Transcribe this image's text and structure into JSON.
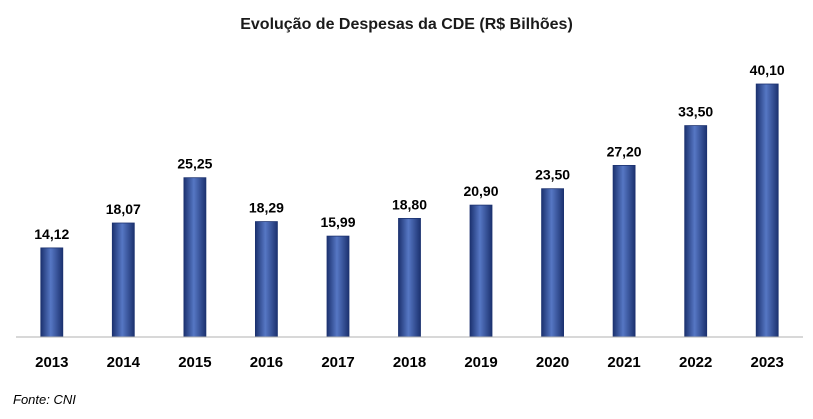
{
  "title": "Evolução de Despesas da CDE (R$ Bilhões)",
  "source_note": "Fonte: CNI",
  "colors": {
    "bar": "#2f4f9a",
    "bar_dark": "#1c3270",
    "bar_light": "#5677c4",
    "axis": "#b0b0b0"
  },
  "chart_data": {
    "type": "bar",
    "title": "Evolução de Despesas da CDE (R$ Bilhões)",
    "xlabel": "",
    "ylabel": "",
    "categories": [
      "2013",
      "2014",
      "2015",
      "2016",
      "2017",
      "2018",
      "2019",
      "2020",
      "2021",
      "2022",
      "2023"
    ],
    "values": [
      14.12,
      18.07,
      25.25,
      18.29,
      15.99,
      18.8,
      20.9,
      23.5,
      27.2,
      33.5,
      40.1
    ],
    "value_labels": [
      "14,12",
      "18,07",
      "25,25",
      "18,29",
      "15,99",
      "18,80",
      "20,90",
      "23,50",
      "27,20",
      "33,50",
      "40,10"
    ],
    "ylim": [
      0,
      40.1
    ],
    "grid": false,
    "legend": "none"
  }
}
